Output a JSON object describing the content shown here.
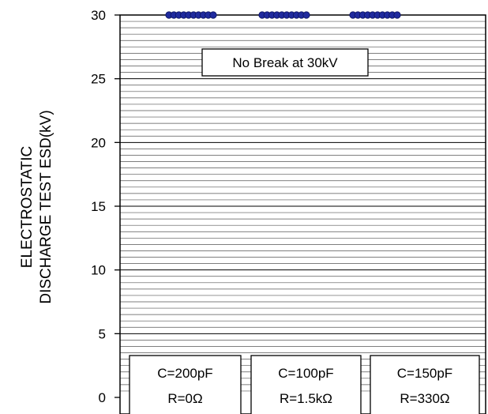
{
  "chart_data": {
    "type": "scatter",
    "title": "",
    "xlabel": "",
    "ylabel_lines": [
      "ELECTROSTATIC",
      "DISCHARGE TEST ESD(kV)"
    ],
    "ylim": [
      0,
      30
    ],
    "yticks": [
      0,
      5,
      10,
      15,
      20,
      25,
      30
    ],
    "minor_grid_step": 0.5,
    "grid": true,
    "marker_color": "#1f2a9e",
    "annotation": "No Break at 30kV",
    "groups": [
      {
        "label_line1": "C=200pF",
        "label_line2": "R=0Ω",
        "values": [
          30,
          30,
          30,
          30,
          30,
          30,
          30,
          30,
          30,
          30
        ]
      },
      {
        "label_line1": "C=100pF",
        "label_line2": "R=1.5kΩ",
        "values": [
          30,
          30,
          30,
          30,
          30,
          30,
          30,
          30,
          30,
          30
        ]
      },
      {
        "label_line1": "C=150pF",
        "label_line2": "R=330Ω",
        "values": [
          30,
          30,
          30,
          30,
          30,
          30,
          30,
          30,
          30,
          30
        ]
      }
    ]
  }
}
